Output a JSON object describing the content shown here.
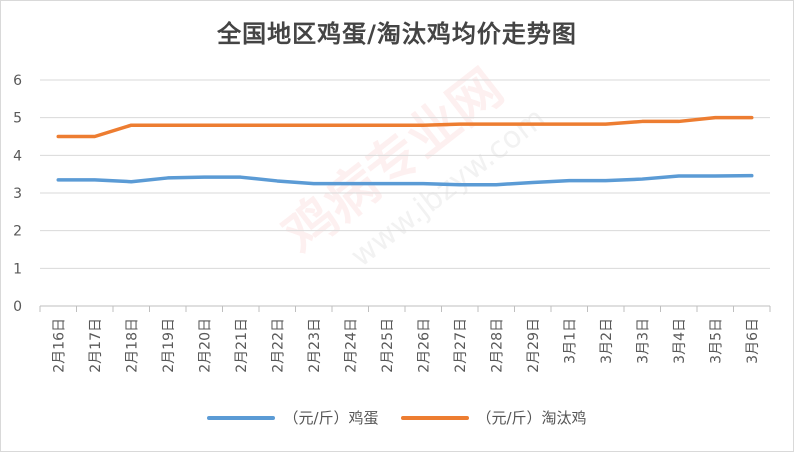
{
  "chart_data": {
    "type": "line",
    "title": "全国地区鸡蛋/淘汰鸡均价走势图",
    "categories": [
      "2月16日",
      "2月17日",
      "2月18日",
      "2月19日",
      "2月20日",
      "2月21日",
      "2月22日",
      "2月23日",
      "2月24日",
      "2月25日",
      "2月26日",
      "2月27日",
      "2月28日",
      "2月29日",
      "3月1日",
      "3月2日",
      "3月3日",
      "3月4日",
      "3月5日",
      "3月6日"
    ],
    "ylim": [
      0,
      6
    ],
    "yticks": [
      "0",
      "1",
      "2",
      "3",
      "4",
      "5",
      "6"
    ],
    "grid": true,
    "legend_position": "bottom",
    "series": [
      {
        "name": "（元/斤）鸡蛋",
        "color": "#5b9bd5",
        "values": [
          3.35,
          3.35,
          3.3,
          3.4,
          3.42,
          3.42,
          3.32,
          3.25,
          3.25,
          3.25,
          3.25,
          3.22,
          3.22,
          3.28,
          3.33,
          3.33,
          3.37,
          3.45,
          3.45,
          3.46
        ]
      },
      {
        "name": "（元/斤）淘汰鸡",
        "color": "#ed7d31",
        "values": [
          4.5,
          4.5,
          4.8,
          4.8,
          4.8,
          4.8,
          4.8,
          4.8,
          4.8,
          4.8,
          4.8,
          4.83,
          4.83,
          4.83,
          4.83,
          4.83,
          4.9,
          4.9,
          5.0,
          5.0
        ]
      }
    ]
  },
  "watermark": {
    "text": "鸡病专业网",
    "url": "www.jbzyw.com"
  }
}
